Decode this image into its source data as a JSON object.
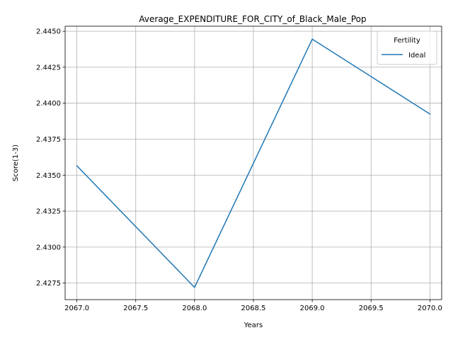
{
  "chart_data": {
    "type": "line",
    "title": "Average_EXPENDITURE_FOR_CITY_of_Black_Male_Pop",
    "xlabel": "Years",
    "ylabel": "Score(1-3)",
    "xlim": [
      2066.9,
      2070.1
    ],
    "ylim": [
      2.42635,
      2.44535
    ],
    "x_ticks": [
      2067.0,
      2067.5,
      2068.0,
      2068.5,
      2069.0,
      2069.5,
      2070.0
    ],
    "x_tick_labels": [
      "2067.0",
      "2067.5",
      "2068.0",
      "2068.5",
      "2069.0",
      "2069.5",
      "2070.0"
    ],
    "y_ticks": [
      2.4275,
      2.43,
      2.4325,
      2.435,
      2.4375,
      2.44,
      2.4425,
      2.445
    ],
    "y_tick_labels": [
      "2.4275",
      "2.4300",
      "2.4325",
      "2.4350",
      "2.4375",
      "2.4400",
      "2.4425",
      "2.4450"
    ],
    "grid": true,
    "legend": {
      "title": "Fertility",
      "placement": "top-right"
    },
    "series": [
      {
        "name": "Ideal",
        "color": "#1f77b4",
        "x": [
          2067.0,
          2068.0,
          2069.0,
          2070.0
        ],
        "y": [
          2.43565,
          2.4272,
          2.44445,
          2.43925
        ]
      }
    ]
  }
}
